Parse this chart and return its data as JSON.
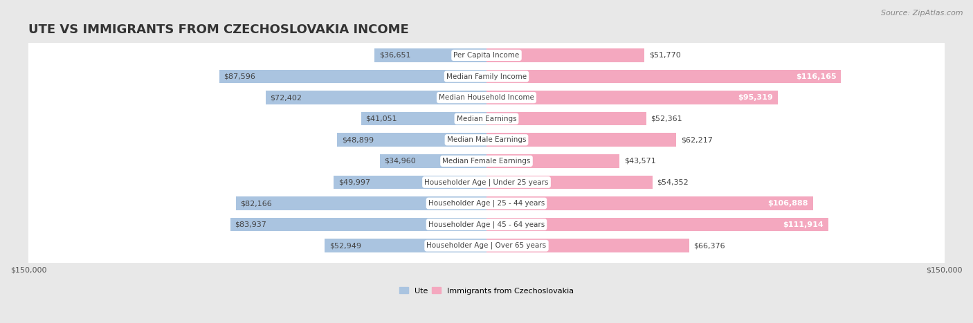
{
  "title": "UTE VS IMMIGRANTS FROM CZECHOSLOVAKIA INCOME",
  "source": "Source: ZipAtlas.com",
  "categories": [
    "Per Capita Income",
    "Median Family Income",
    "Median Household Income",
    "Median Earnings",
    "Median Male Earnings",
    "Median Female Earnings",
    "Householder Age | Under 25 years",
    "Householder Age | 25 - 44 years",
    "Householder Age | 45 - 64 years",
    "Householder Age | Over 65 years"
  ],
  "ute_values": [
    36651,
    87596,
    72402,
    41051,
    48899,
    34960,
    49997,
    82166,
    83937,
    52949
  ],
  "immig_values": [
    51770,
    116165,
    95319,
    52361,
    62217,
    43571,
    54352,
    106888,
    111914,
    66376
  ],
  "ute_labels": [
    "$36,651",
    "$87,596",
    "$72,402",
    "$41,051",
    "$48,899",
    "$34,960",
    "$49,997",
    "$82,166",
    "$83,937",
    "$52,949"
  ],
  "immig_labels": [
    "$51,770",
    "$116,165",
    "$95,319",
    "$52,361",
    "$62,217",
    "$43,571",
    "$54,352",
    "$106,888",
    "$111,914",
    "$66,376"
  ],
  "max_val": 150000,
  "ute_color": "#aac4e0",
  "immig_color": "#f4a8bf",
  "immig_color_bright": "#e8638a",
  "background_color": "#e8e8e8",
  "row_bg_color": "#ffffff",
  "label_color_dark": "#444444",
  "title_fontsize": 13,
  "source_fontsize": 8,
  "bar_label_fontsize": 8,
  "cat_label_fontsize": 7.5,
  "axis_label_fontsize": 8,
  "legend_fontsize": 8
}
